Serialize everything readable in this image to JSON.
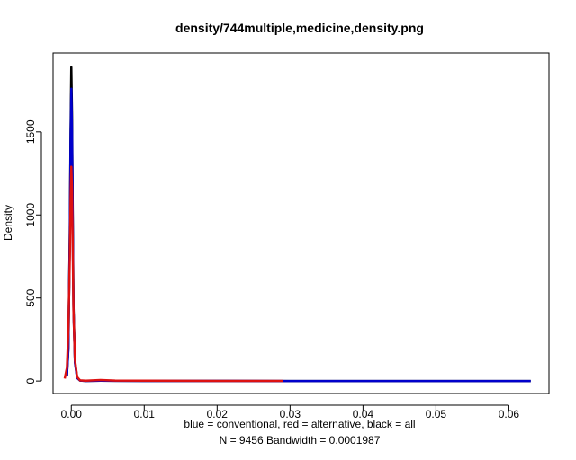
{
  "chart_data": {
    "type": "line",
    "title": "density/744multiple,medicine,density.png",
    "xlabel_line1": "blue = conventional, red = alternative, black = all",
    "xlabel_line2": "N = 9456   Bandwidth = 0.0001987",
    "ylabel": "Density",
    "xlim": [
      -0.0025,
      0.0655
    ],
    "ylim": [
      -75,
      1975
    ],
    "x_ticks": [
      0.0,
      0.01,
      0.02,
      0.03,
      0.04,
      0.05,
      0.06
    ],
    "x_tick_labels": [
      "0.00",
      "0.01",
      "0.02",
      "0.03",
      "0.04",
      "0.05",
      "0.06"
    ],
    "y_ticks": [
      0,
      500,
      1000,
      1500
    ],
    "y_tick_labels": [
      "0",
      "500",
      "1000",
      "1500"
    ],
    "series": [
      {
        "name": "all",
        "color": "#000000",
        "points": [
          [
            -0.0006,
            30
          ],
          [
            -0.0004,
            200
          ],
          [
            -0.0002,
            900
          ],
          [
            -0.0001,
            1500
          ],
          [
            0.0,
            1890
          ],
          [
            0.0001,
            1600
          ],
          [
            0.0002,
            1000
          ],
          [
            0.0003,
            450
          ],
          [
            0.0005,
            120
          ],
          [
            0.0008,
            20
          ],
          [
            0.0012,
            3
          ],
          [
            0.002,
            1
          ],
          [
            0.004,
            2
          ],
          [
            0.01,
            1
          ],
          [
            0.02,
            0.5
          ],
          [
            0.03,
            0.3
          ],
          [
            0.05,
            0.2
          ],
          [
            0.063,
            0.1
          ]
        ]
      },
      {
        "name": "conventional",
        "color": "#0000cc",
        "points": [
          [
            -0.0006,
            30
          ],
          [
            -0.0004,
            190
          ],
          [
            -0.0002,
            880
          ],
          [
            -0.0001,
            1450
          ],
          [
            0.0,
            1760
          ],
          [
            0.0001,
            1500
          ],
          [
            0.0002,
            950
          ],
          [
            0.0003,
            430
          ],
          [
            0.0005,
            110
          ],
          [
            0.0008,
            18
          ],
          [
            0.0012,
            3
          ],
          [
            0.002,
            1
          ],
          [
            0.004,
            2
          ],
          [
            0.01,
            1
          ],
          [
            0.02,
            0.5
          ],
          [
            0.03,
            0.3
          ],
          [
            0.05,
            0.2
          ],
          [
            0.063,
            0.1
          ]
        ]
      },
      {
        "name": "alternative",
        "color": "#dd1111",
        "points": [
          [
            -0.0009,
            15
          ],
          [
            -0.0006,
            80
          ],
          [
            -0.0004,
            300
          ],
          [
            -0.0002,
            750
          ],
          [
            -0.0001,
            1100
          ],
          [
            0.0,
            1290
          ],
          [
            0.0001,
            1150
          ],
          [
            0.0002,
            800
          ],
          [
            0.0003,
            420
          ],
          [
            0.0005,
            130
          ],
          [
            0.0008,
            25
          ],
          [
            0.0012,
            4
          ],
          [
            0.002,
            2
          ],
          [
            0.004,
            6
          ],
          [
            0.006,
            3
          ],
          [
            0.01,
            2
          ],
          [
            0.02,
            1
          ],
          [
            0.029,
            0.5
          ]
        ]
      }
    ]
  }
}
